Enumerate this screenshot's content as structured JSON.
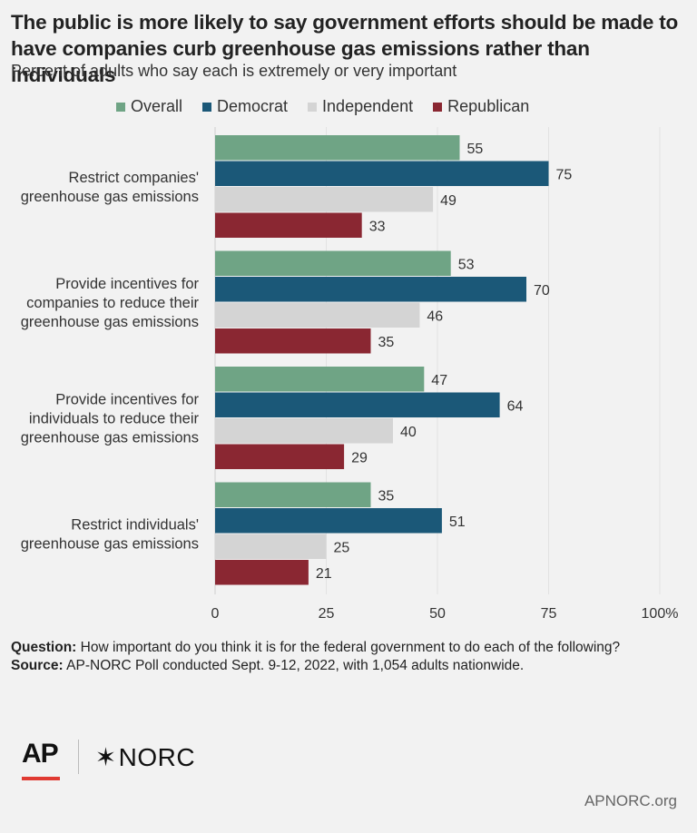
{
  "title": "The public is more likely to say government efforts should be made to have companies curb greenhouse gas emissions rather than individuals",
  "subtitle": "Percent of adults who say each is extremely or very important",
  "chart_data": {
    "type": "bar",
    "orientation": "horizontal",
    "title": "",
    "xlabel": "",
    "ylabel": "",
    "xlim": [
      0,
      100
    ],
    "x_ticks": [
      "0",
      "25",
      "50",
      "75",
      "100%"
    ],
    "x_tick_values": [
      0,
      25,
      50,
      75,
      100
    ],
    "grid": true,
    "legend_position": "top",
    "categories": [
      [
        "Restrict companies'",
        "greenhouse gas emissions"
      ],
      [
        "Provide incentives for",
        "companies to reduce their",
        "greenhouse gas emissions"
      ],
      [
        "Provide incentives for",
        "individuals to reduce their",
        "greenhouse gas emissions"
      ],
      [
        "Restrict individuals'",
        "greenhouse gas emissions"
      ]
    ],
    "series": [
      {
        "name": "Overall",
        "color": "#6fa485",
        "values": [
          55,
          53,
          47,
          35
        ]
      },
      {
        "name": "Democrat",
        "color": "#1b5878",
        "values": [
          75,
          70,
          64,
          51
        ]
      },
      {
        "name": "Independent",
        "color": "#d4d4d4",
        "values": [
          49,
          46,
          40,
          25
        ]
      },
      {
        "name": "Republican",
        "color": "#8a2732",
        "values": [
          33,
          35,
          29,
          21
        ]
      }
    ]
  },
  "footer": {
    "question_label": "Question:",
    "question_text": "How important do you think it is for the federal government to do each of the following?",
    "source_label": "Source:",
    "source_text": "AP-NORC Poll conducted Sept. 9-12, 2022, with 1,054 adults nationwide."
  },
  "logos": {
    "ap": "AP",
    "norc_mark": "✶",
    "norc": "NORC"
  },
  "site": "APNORC.org"
}
